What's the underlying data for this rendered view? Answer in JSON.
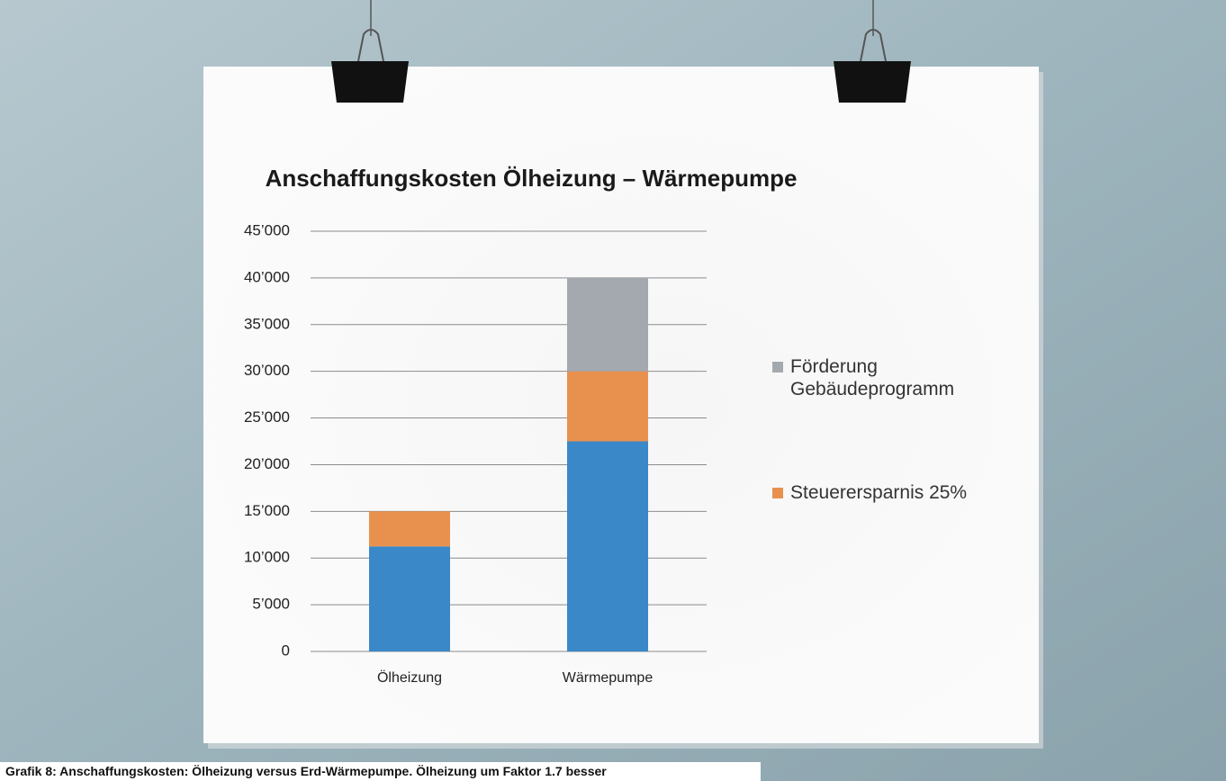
{
  "chart_data": {
    "type": "stacked-bar",
    "title": "Anschaffungskosten Ölheizung – Wärmepumpe",
    "categories": [
      "Ölheizung",
      "Wärmepumpe"
    ],
    "series": [
      {
        "color": "#3a88c8",
        "values": [
          11250,
          22500
        ]
      },
      {
        "name": "Steuerersparnis 25%",
        "color": "#e8914f",
        "values": [
          3750,
          7500
        ]
      },
      {
        "name": "Förderung Gebäudeprogramm",
        "color": "#a4a9af",
        "values": [
          0,
          10000
        ]
      }
    ],
    "ylim": [
      0,
      45000
    ],
    "yticks": [
      0,
      {
        "value": 5000,
        "label": "5’000"
      },
      {
        "value": 10000,
        "label": "10’000"
      },
      {
        "value": 15000,
        "label": "15’000"
      },
      {
        "value": 20000,
        "label": "20’000"
      },
      {
        "value": 25000,
        "label": "25’000"
      },
      {
        "value": 30000,
        "label": "30’000"
      },
      {
        "value": 35000,
        "label": "35’000"
      },
      {
        "value": 40000,
        "label": "40’000"
      },
      {
        "value": 45000,
        "label": "45’000"
      }
    ],
    "grid": true
  },
  "caption": "Grafik 8: Anschaffungskosten: Ölheizung versus Erd-Wärmepumpe. Ölheizung um Faktor 1.7 besser"
}
